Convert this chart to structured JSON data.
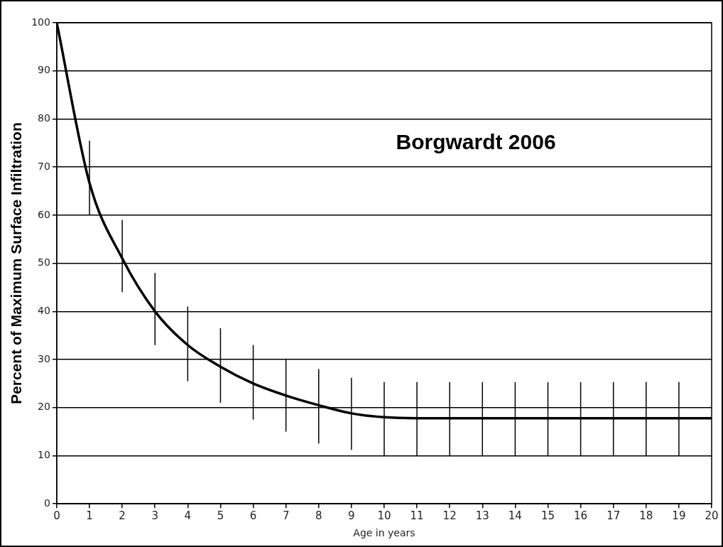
{
  "chart_data": {
    "type": "line",
    "xlabel": "Age in years",
    "ylabel": "Percent of Maximum Surface Infiltration",
    "annotations": [
      "Borgwardt 2006"
    ],
    "x": [
      0,
      1,
      2,
      3,
      4,
      5,
      6,
      7,
      8,
      9,
      10,
      11,
      12,
      13,
      14,
      15,
      16,
      17,
      18,
      19,
      20
    ],
    "series": [
      {
        "color": "#000000",
        "values": [
          100,
          66.7,
          51,
          40,
          33,
          28.5,
          25,
          22.5,
          20.5,
          18.8,
          18,
          17.8,
          17.8,
          17.8,
          17.8,
          17.8,
          17.8,
          17.8,
          17.8,
          17.8,
          17.8
        ],
        "errors": [
          null,
          [
            60,
            75.5
          ],
          [
            44,
            59
          ],
          [
            33,
            48
          ],
          [
            25.5,
            41
          ],
          [
            21,
            36.5
          ],
          [
            17.5,
            33
          ],
          [
            15,
            30
          ],
          [
            12.5,
            28
          ],
          [
            11.2,
            26.2
          ],
          [
            10,
            25.3
          ],
          [
            10,
            25.3
          ],
          [
            10,
            25.3
          ],
          [
            10,
            25.3
          ],
          [
            10,
            25.3
          ],
          [
            10,
            25.3
          ],
          [
            10,
            25.3
          ],
          [
            10,
            25.3
          ],
          [
            10,
            25.3
          ],
          [
            10,
            25.3
          ],
          null
        ]
      }
    ],
    "xlim": [
      0,
      20
    ],
    "xticks": [
      0,
      1,
      2,
      3,
      4,
      5,
      6,
      7,
      8,
      9,
      10,
      11,
      12,
      13,
      14,
      15,
      16,
      17,
      18,
      19,
      20
    ],
    "ylim": [
      0,
      100
    ],
    "yticks": [
      0,
      10,
      20,
      30,
      40,
      50,
      60,
      70,
      80,
      90,
      100
    ],
    "grid": "y",
    "legend": false,
    "marker": "none",
    "line_style": "solid"
  }
}
